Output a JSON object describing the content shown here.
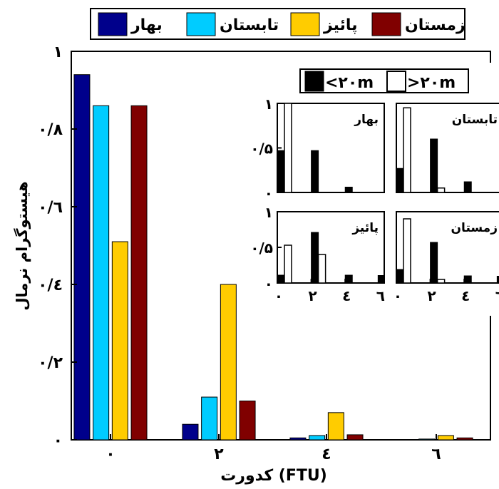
{
  "chart_data": [
    {
      "type": "bar",
      "xlabel": "کدورت (FTU)",
      "ylabel": "هیستوگرام نرمال",
      "categories": [
        "۰",
        "۲",
        "٤",
        "٦"
      ],
      "ylim": [
        0,
        1
      ],
      "yticks": [
        {
          "value": 0,
          "label": "۰"
        },
        {
          "value": 0.2,
          "label": "۰/۲"
        },
        {
          "value": 0.4,
          "label": "۰/٤"
        },
        {
          "value": 0.6,
          "label": "۰/٦"
        },
        {
          "value": 0.8,
          "label": "۰/۸"
        },
        {
          "value": 1,
          "label": "۱"
        }
      ],
      "legend_position": "top",
      "series": [
        {
          "name": "بهار",
          "color": "#00008B",
          "values": [
            0.94,
            0.04,
            0.005,
            0
          ]
        },
        {
          "name": "تابستان",
          "color": "#00CCFF",
          "values": [
            0.86,
            0.11,
            0.011,
            0.002
          ]
        },
        {
          "name": "پائیز",
          "color": "#FFCC00",
          "values": [
            0.51,
            0.4,
            0.07,
            0.011
          ]
        },
        {
          "name": "زمستان",
          "color": "#800000",
          "values": [
            0.86,
            0.1,
            0.013,
            0.005
          ]
        }
      ]
    },
    {
      "type": "bar",
      "legend_position": "top",
      "legend": [
        {
          "label": "<۲۰m",
          "color": "#000000"
        },
        {
          "label": ">۲۰m",
          "color": "#ffffff"
        }
      ],
      "ylim": [
        0,
        1
      ],
      "yticks": [
        {
          "value": 0,
          "label": "۰"
        },
        {
          "value": 0.5,
          "label": "۰/۵"
        },
        {
          "value": 1,
          "label": "۱"
        }
      ],
      "xticks": [
        {
          "value": 0,
          "label": "۰"
        },
        {
          "value": 2,
          "label": "۲"
        },
        {
          "value": 4,
          "label": "٤"
        },
        {
          "value": 6,
          "label": "٦"
        }
      ],
      "panels": [
        {
          "title": "بهار",
          "below": [
            0.47,
            0.47,
            0.06
          ],
          "above": [
            1.0,
            0.0,
            0.0
          ]
        },
        {
          "title": "تابستان",
          "below": [
            0.27,
            0.6,
            0.12
          ],
          "above": [
            0.95,
            0.05,
            0.0
          ]
        },
        {
          "title": "پائیز",
          "below": [
            0.11,
            0.71,
            0.11
          ],
          "above": [
            0.53,
            0.4,
            0.0
          ]
        },
        {
          "title": "زمستان",
          "below": [
            0.19,
            0.57,
            0.1
          ],
          "above": [
            0.9,
            0.05,
            0.0
          ]
        }
      ]
    }
  ]
}
